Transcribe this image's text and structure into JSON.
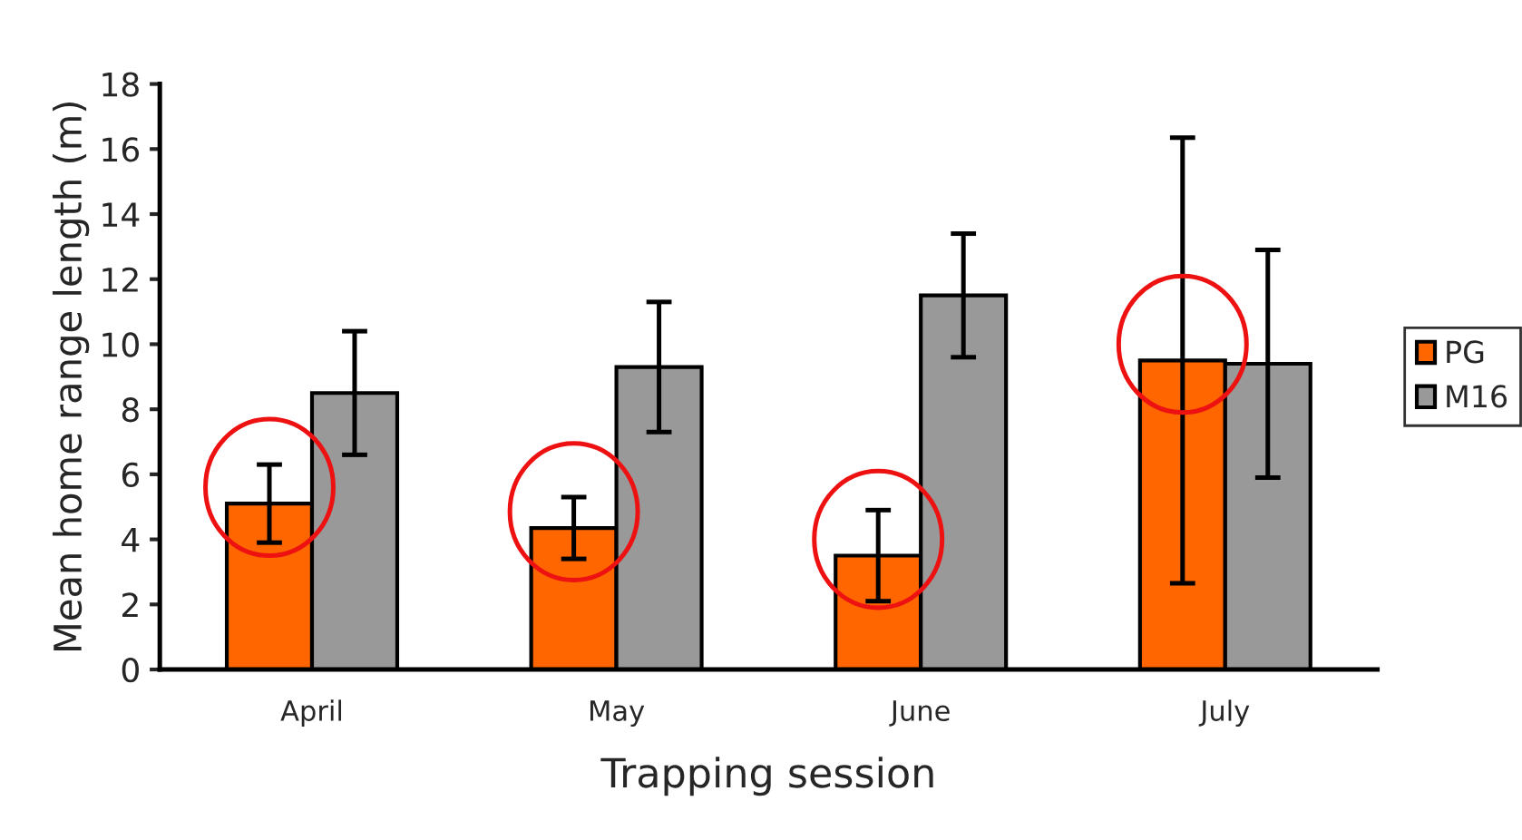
{
  "chart_data": {
    "type": "bar",
    "xlabel": "Trapping session",
    "ylabel": "Mean home range length (m)",
    "categories": [
      "April",
      "May",
      "June",
      "July"
    ],
    "series": [
      {
        "name": "PG",
        "color": "#ff6600",
        "values": [
          5.1,
          4.35,
          3.5,
          9.5
        ],
        "errors": [
          1.2,
          0.95,
          1.4,
          6.85
        ]
      },
      {
        "name": "M16",
        "color": "#999999",
        "values": [
          8.5,
          9.3,
          11.5,
          9.4
        ],
        "errors": [
          1.9,
          2.0,
          1.9,
          3.5
        ]
      }
    ],
    "ylim": [
      0,
      18
    ],
    "yticks": [
      0,
      2,
      4,
      6,
      8,
      10,
      12,
      14,
      16,
      18
    ],
    "grid": false,
    "legend": "right"
  }
}
